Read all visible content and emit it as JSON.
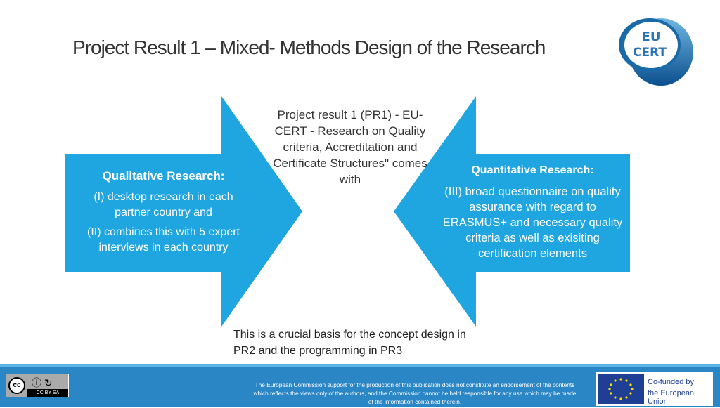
{
  "title": "Project Result 1 – Mixed- Methods Design of the Research",
  "logo_text": "EU CERT",
  "center_text": "Project result 1 (PR1) - EU-CERT - Research on Quality criteria, Accreditation and Certificate Structures\" comes with",
  "left": {
    "heading": "Qualitative Research:",
    "items": [
      "(I) desktop research in each partner country and",
      "(II) combines this with 5 expert interviews in each country"
    ]
  },
  "right": {
    "heading": "Quantitative Research:",
    "items": [
      "(III) broad questionnaire on quality assurance with regard to ERASMUS+ and necessary quality criteria as well as exisiting certification elements"
    ]
  },
  "bottom_text": "This is a crucial basis for the concept design in PR2 and the programming in PR3",
  "footer": {
    "disclaimer": "The European Commission support for the production of this publication does not constitute an endorsement of the contents which reflects the views only of the authors, and the Commission cannot be held responsible for any use which may be made of the information contained therein.",
    "license": "CC BY SA",
    "eu_line1": "Co-funded by",
    "eu_line2": "the European Union"
  },
  "colors": {
    "arrow": "#1fa5e0",
    "footer": "#2b86c6"
  }
}
